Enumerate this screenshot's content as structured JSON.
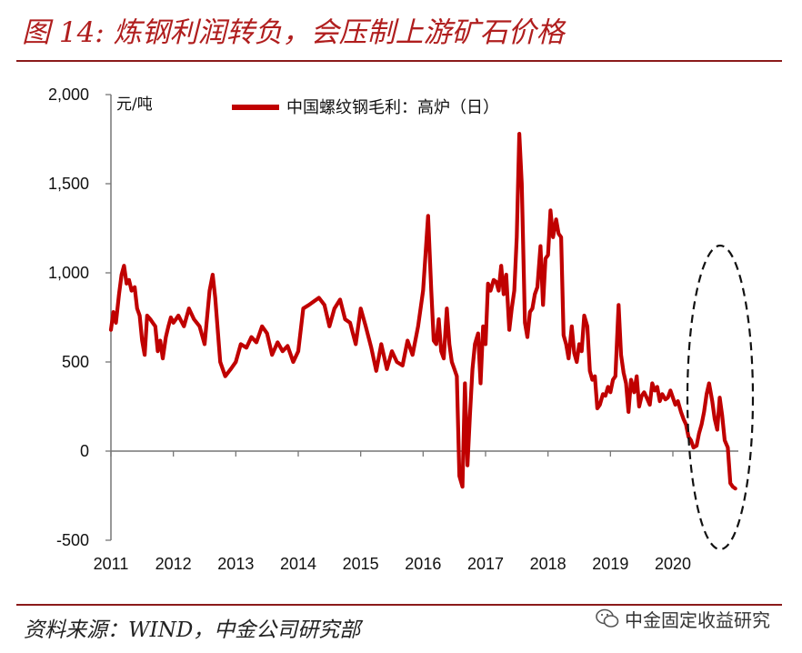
{
  "header": {
    "title": "图 14: 炼钢利润转负，会压制上游矿石价格"
  },
  "footer": {
    "source": "资料来源：WIND，中金公司研究部",
    "watermark": "中金固定收益研究"
  },
  "icons": {
    "watermark": "wechat-icon"
  },
  "colors": {
    "series": "#c00000",
    "rule": "#8b1a1a",
    "title": "#b01e1e"
  },
  "chart_data": {
    "type": "line",
    "title": "",
    "ylabel": "元/吨",
    "xlabel": "",
    "ylim": [
      -500,
      2000
    ],
    "yticks": [
      -500,
      0,
      500,
      1000,
      1500,
      2000
    ],
    "ytick_labels": [
      "-500",
      "0",
      "500",
      "1,000",
      "1,500",
      "2,000"
    ],
    "xlim": [
      2011.0,
      2021.05
    ],
    "xticks": [
      2011,
      2012,
      2013,
      2014,
      2015,
      2016,
      2017,
      2018,
      2019,
      2020
    ],
    "xtick_labels": [
      "2011",
      "2012",
      "2013",
      "2014",
      "2015",
      "2016",
      "2017",
      "2018",
      "2019",
      "2020"
    ],
    "legend": {
      "placement": "top-center"
    },
    "grid": false,
    "annotation": "dashed ellipse highlighting late-2020 decline",
    "series": [
      {
        "name": "中国螺纹钢毛利：高炉（日）",
        "color": "#c00000",
        "x": [
          2011.0,
          2011.04,
          2011.08,
          2011.13,
          2011.17,
          2011.21,
          2011.25,
          2011.29,
          2011.33,
          2011.38,
          2011.42,
          2011.46,
          2011.5,
          2011.54,
          2011.58,
          2011.63,
          2011.67,
          2011.71,
          2011.75,
          2011.79,
          2011.83,
          2011.88,
          2011.92,
          2011.96,
          2012.0,
          2012.08,
          2012.17,
          2012.25,
          2012.33,
          2012.42,
          2012.5,
          2012.58,
          2012.63,
          2012.67,
          2012.75,
          2012.83,
          2012.92,
          2013.0,
          2013.08,
          2013.17,
          2013.25,
          2013.33,
          2013.42,
          2013.5,
          2013.58,
          2013.67,
          2013.75,
          2013.83,
          2013.92,
          2014.0,
          2014.08,
          2014.17,
          2014.25,
          2014.33,
          2014.42,
          2014.5,
          2014.58,
          2014.67,
          2014.75,
          2014.83,
          2014.92,
          2015.0,
          2015.08,
          2015.17,
          2015.25,
          2015.33,
          2015.42,
          2015.5,
          2015.58,
          2015.67,
          2015.75,
          2015.83,
          2015.92,
          2016.0,
          2016.08,
          2016.13,
          2016.17,
          2016.21,
          2016.25,
          2016.29,
          2016.33,
          2016.38,
          2016.42,
          2016.46,
          2016.5,
          2016.54,
          2016.58,
          2016.63,
          2016.67,
          2016.71,
          2016.75,
          2016.79,
          2016.83,
          2016.88,
          2016.92,
          2016.96,
          2017.0,
          2017.04,
          2017.08,
          2017.13,
          2017.17,
          2017.21,
          2017.25,
          2017.29,
          2017.33,
          2017.38,
          2017.42,
          2017.46,
          2017.5,
          2017.54,
          2017.58,
          2017.63,
          2017.67,
          2017.71,
          2017.75,
          2017.79,
          2017.83,
          2017.88,
          2017.92,
          2017.96,
          2018.0,
          2018.04,
          2018.08,
          2018.13,
          2018.17,
          2018.21,
          2018.25,
          2018.29,
          2018.33,
          2018.38,
          2018.42,
          2018.46,
          2018.5,
          2018.54,
          2018.58,
          2018.63,
          2018.67,
          2018.71,
          2018.75,
          2018.79,
          2018.83,
          2018.88,
          2018.92,
          2018.96,
          2019.0,
          2019.04,
          2019.08,
          2019.13,
          2019.17,
          2019.21,
          2019.25,
          2019.29,
          2019.33,
          2019.38,
          2019.42,
          2019.46,
          2019.5,
          2019.54,
          2019.58,
          2019.63,
          2019.67,
          2019.71,
          2019.75,
          2019.79,
          2019.83,
          2019.88,
          2019.92,
          2019.96,
          2020.0,
          2020.04,
          2020.08,
          2020.13,
          2020.17,
          2020.21,
          2020.25,
          2020.29,
          2020.33,
          2020.38,
          2020.42,
          2020.46,
          2020.5,
          2020.54,
          2020.58,
          2020.63,
          2020.67,
          2020.71,
          2020.75,
          2020.79,
          2020.83,
          2020.88,
          2020.92,
          2020.96,
          2021.0
        ],
        "values": [
          680,
          780,
          720,
          880,
          990,
          1040,
          940,
          960,
          900,
          920,
          800,
          760,
          620,
          540,
          760,
          740,
          720,
          700,
          560,
          620,
          520,
          640,
          700,
          750,
          720,
          760,
          700,
          800,
          740,
          700,
          600,
          900,
          990,
          860,
          500,
          420,
          460,
          500,
          600,
          580,
          640,
          610,
          700,
          660,
          540,
          610,
          560,
          590,
          500,
          560,
          800,
          820,
          840,
          860,
          820,
          700,
          800,
          850,
          740,
          720,
          600,
          800,
          700,
          580,
          450,
          600,
          460,
          560,
          500,
          480,
          620,
          540,
          700,
          900,
          1320,
          900,
          620,
          600,
          740,
          560,
          520,
          800,
          600,
          500,
          460,
          420,
          -140,
          -200,
          380,
          -80,
          200,
          460,
          600,
          660,
          380,
          700,
          600,
          940,
          900,
          960,
          950,
          900,
          1040,
          880,
          990,
          680,
          800,
          900,
          1200,
          1780,
          1500,
          720,
          640,
          780,
          800,
          880,
          920,
          1150,
          820,
          1080,
          1100,
          1350,
          1200,
          1300,
          1220,
          1200,
          650,
          600,
          520,
          700,
          550,
          500,
          600,
          560,
          760,
          700,
          450,
          400,
          420,
          240,
          260,
          320,
          310,
          360,
          330,
          400,
          420,
          820,
          540,
          440,
          380,
          220,
          400,
          330,
          420,
          250,
          310,
          330,
          300,
          260,
          380,
          340,
          360,
          280,
          320,
          290,
          300,
          340,
          300,
          260,
          280,
          220,
          180,
          150,
          80,
          60,
          20,
          30,
          100,
          150,
          220,
          320,
          380,
          280,
          180,
          120,
          300,
          200,
          60,
          20,
          -180,
          -200,
          -210
        ]
      }
    ]
  }
}
